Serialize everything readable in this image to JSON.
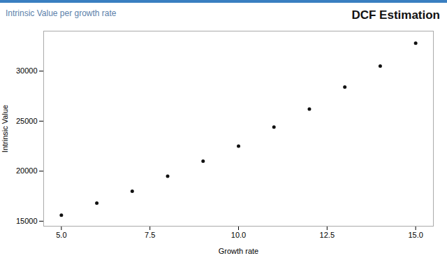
{
  "chart_data": {
    "type": "scatter",
    "title": "DCF Estimation",
    "subtitle": "Intrinsic Value per growth rate",
    "xlabel": "Growth rate",
    "ylabel": "Intrinsic Value",
    "x": [
      5,
      6,
      7,
      8,
      9,
      10,
      11,
      12,
      13,
      14,
      15
    ],
    "values": [
      15600,
      16800,
      18000,
      19500,
      21000,
      22500,
      24400,
      26200,
      28400,
      30500,
      32800
    ],
    "color": "#111111",
    "xlim": [
      4.5,
      15.5
    ],
    "ylim": [
      14500,
      34000
    ],
    "xticks": [
      {
        "value": 5.0,
        "label": "5.0"
      },
      7.5,
      {
        "value": 10.0,
        "label": "10.0"
      },
      12.5,
      {
        "value": 15.0,
        "label": "15.0"
      }
    ],
    "yticks": [
      15000,
      20000,
      25000,
      30000
    ],
    "grid": false
  }
}
